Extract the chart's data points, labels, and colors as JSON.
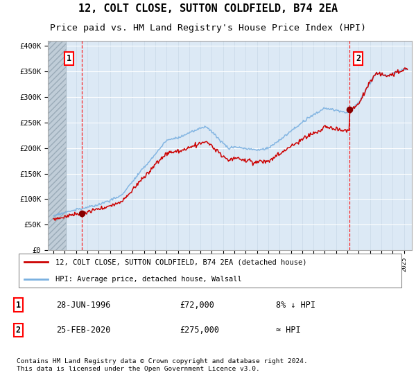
{
  "title": "12, COLT CLOSE, SUTTON COLDFIELD, B74 2EA",
  "subtitle": "Price paid vs. HM Land Registry's House Price Index (HPI)",
  "ylim": [
    0,
    410000
  ],
  "yticks": [
    0,
    50000,
    100000,
    150000,
    200000,
    250000,
    300000,
    350000,
    400000
  ],
  "ytick_labels": [
    "£0",
    "£50K",
    "£100K",
    "£150K",
    "£200K",
    "£250K",
    "£300K",
    "£350K",
    "£400K"
  ],
  "hpi_color": "#7ab0e0",
  "price_color": "#cc0000",
  "sale1_x": 1996.49,
  "sale1_price": 72000,
  "sale2_x": 2020.15,
  "sale2_price": 275000,
  "legend_entry1": "12, COLT CLOSE, SUTTON COLDFIELD, B74 2EA (detached house)",
  "legend_entry2": "HPI: Average price, detached house, Walsall",
  "table_row1": [
    "1",
    "28-JUN-1996",
    "£72,000",
    "8% ↓ HPI"
  ],
  "table_row2": [
    "2",
    "25-FEB-2020",
    "£275,000",
    "≈ HPI"
  ],
  "footer": "Contains HM Land Registry data © Crown copyright and database right 2024.\nThis data is licensed under the Open Government Licence v3.0.",
  "bg_color": "#dce9f5",
  "title_fontsize": 11,
  "subtitle_fontsize": 9.5
}
